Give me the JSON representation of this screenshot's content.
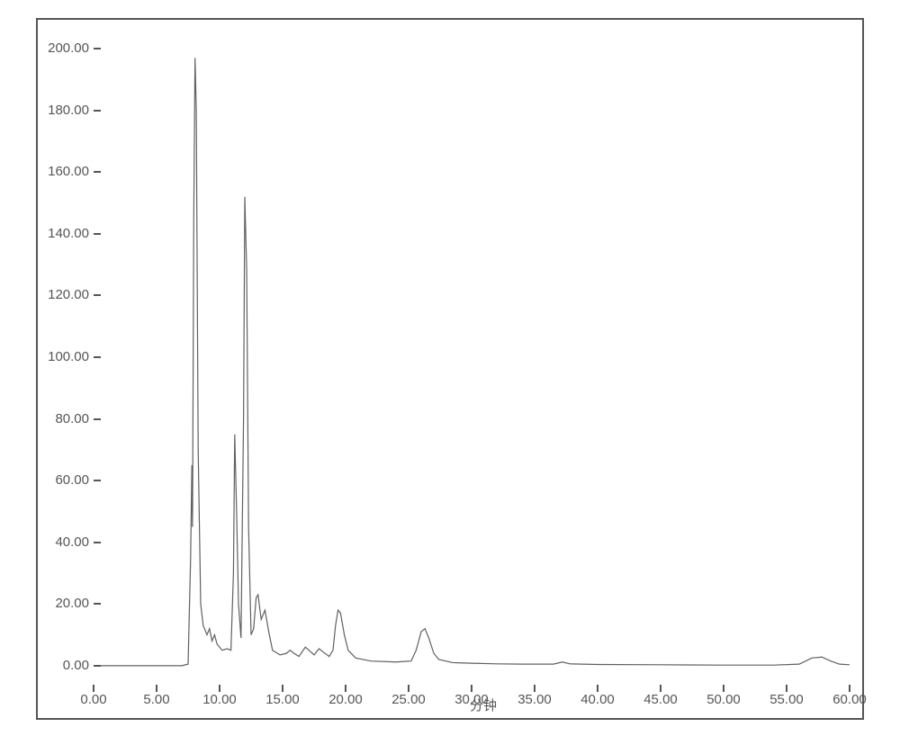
{
  "chart": {
    "type": "line",
    "xlabel": "分钟",
    "xlim": [
      0,
      60
    ],
    "ylim": [
      -5,
      205
    ],
    "xtick_step": 5,
    "ytick_step": 20,
    "xtick_labels": [
      "0.00",
      "5.00",
      "10.00",
      "15.00",
      "20.00",
      "25.00",
      "30.00",
      "35.00",
      "40.00",
      "45.00",
      "50.00",
      "55.00",
      "60.00"
    ],
    "ytick_labels": [
      "0.00",
      "20.00",
      "40.00",
      "60.00",
      "80.00",
      "100.00",
      "120.00",
      "140.00",
      "160.00",
      "180.00",
      "200.00"
    ],
    "line_color": "#606060",
    "line_width": 1.2,
    "border_color": "#555555",
    "text_color": "#555555",
    "label_fontsize": 15,
    "background_color": "#ffffff",
    "data": [
      [
        0.0,
        0.0
      ],
      [
        7.0,
        0.0
      ],
      [
        7.5,
        0.5
      ],
      [
        7.7,
        35.0
      ],
      [
        7.8,
        65.0
      ],
      [
        7.85,
        45.0
      ],
      [
        7.95,
        145.0
      ],
      [
        8.05,
        197.0
      ],
      [
        8.15,
        180.0
      ],
      [
        8.3,
        70.0
      ],
      [
        8.5,
        20.0
      ],
      [
        8.7,
        13.0
      ],
      [
        9.0,
        10.0
      ],
      [
        9.2,
        12.0
      ],
      [
        9.4,
        8.0
      ],
      [
        9.6,
        10.0
      ],
      [
        9.8,
        7.0
      ],
      [
        10.2,
        5.0
      ],
      [
        10.6,
        5.5
      ],
      [
        10.9,
        5.0
      ],
      [
        11.1,
        30.0
      ],
      [
        11.2,
        75.0
      ],
      [
        11.35,
        50.0
      ],
      [
        11.5,
        20.0
      ],
      [
        11.7,
        9.0
      ],
      [
        11.9,
        80.0
      ],
      [
        12.0,
        152.0
      ],
      [
        12.15,
        128.0
      ],
      [
        12.3,
        45.0
      ],
      [
        12.5,
        10.0
      ],
      [
        12.7,
        12.0
      ],
      [
        12.9,
        22.0
      ],
      [
        13.05,
        23.0
      ],
      [
        13.3,
        15.0
      ],
      [
        13.6,
        18.0
      ],
      [
        13.9,
        11.0
      ],
      [
        14.2,
        5.0
      ],
      [
        14.8,
        3.5
      ],
      [
        15.3,
        4.0
      ],
      [
        15.6,
        5.0
      ],
      [
        15.9,
        4.0
      ],
      [
        16.3,
        3.0
      ],
      [
        16.8,
        6.0
      ],
      [
        17.1,
        5.0
      ],
      [
        17.5,
        3.5
      ],
      [
        17.9,
        5.5
      ],
      [
        18.2,
        4.5
      ],
      [
        18.7,
        3.0
      ],
      [
        19.0,
        5.0
      ],
      [
        19.2,
        13.0
      ],
      [
        19.4,
        18.0
      ],
      [
        19.6,
        17.0
      ],
      [
        19.9,
        10.0
      ],
      [
        20.2,
        5.0
      ],
      [
        20.8,
        2.5
      ],
      [
        22.0,
        1.5
      ],
      [
        24.0,
        1.2
      ],
      [
        25.2,
        1.5
      ],
      [
        25.6,
        5.0
      ],
      [
        26.0,
        11.0
      ],
      [
        26.3,
        12.0
      ],
      [
        26.6,
        9.0
      ],
      [
        27.0,
        4.0
      ],
      [
        27.4,
        2.0
      ],
      [
        28.5,
        1.0
      ],
      [
        30.0,
        0.8
      ],
      [
        32.0,
        0.6
      ],
      [
        34.0,
        0.5
      ],
      [
        36.5,
        0.5
      ],
      [
        37.2,
        1.2
      ],
      [
        37.8,
        0.6
      ],
      [
        40.0,
        0.4
      ],
      [
        45.0,
        0.3
      ],
      [
        50.0,
        0.2
      ],
      [
        54.0,
        0.2
      ],
      [
        56.0,
        0.5
      ],
      [
        57.0,
        2.5
      ],
      [
        57.8,
        2.8
      ],
      [
        58.5,
        1.5
      ],
      [
        59.2,
        0.5
      ],
      [
        60.0,
        0.3
      ]
    ]
  }
}
